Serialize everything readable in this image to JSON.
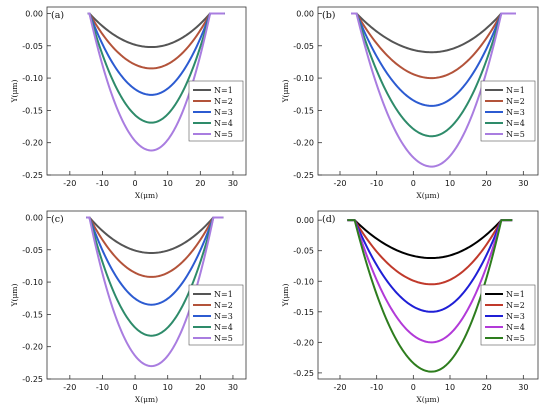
{
  "chart_data": [
    {
      "panel_label": "(a)",
      "type": "line",
      "xlabel": "X(μm)",
      "ylabel": "Y(μm)",
      "xlim": [
        -27,
        34
      ],
      "ylim": [
        -0.25,
        0.01
      ],
      "xticks": [
        -20,
        -10,
        0,
        10,
        20,
        30
      ],
      "yticks": [
        0.0,
        -0.05,
        -0.1,
        -0.15,
        -0.2,
        -0.25
      ],
      "ytick_labels": [
        "0.00",
        "-0.05",
        "-0.10",
        "-0.15",
        "-0.20",
        "-0.25"
      ],
      "legend_position": "center-right",
      "flat_extent": [
        -14.5,
        27.5
      ],
      "groove": {
        "left": -14,
        "right": 23,
        "center": 5
      },
      "series": [
        {
          "name": "N=1",
          "depth": 0.052,
          "color": "#555555"
        },
        {
          "name": "N=2",
          "depth": 0.085,
          "color": "#b3533a"
        },
        {
          "name": "N=3",
          "depth": 0.126,
          "color": "#2c5bd1"
        },
        {
          "name": "N=4",
          "depth": 0.169,
          "color": "#2e8b6a"
        },
        {
          "name": "N=5",
          "depth": 0.212,
          "color": "#a97de0"
        }
      ]
    },
    {
      "panel_label": "(b)",
      "type": "line",
      "xlabel": "X(μm)",
      "ylabel": "Y(μm)",
      "xlim": [
        -26,
        34
      ],
      "ylim": [
        -0.25,
        0.01
      ],
      "xticks": [
        -20,
        -10,
        0,
        10,
        20,
        30
      ],
      "yticks": [
        0.0,
        -0.05,
        -0.1,
        -0.15,
        -0.2,
        -0.25
      ],
      "ytick_labels": [
        "0.00",
        "-0.05",
        "-0.10",
        "-0.15",
        "-0.20",
        "-0.25"
      ],
      "legend_position": "center-right",
      "flat_extent": [
        -17,
        28
      ],
      "groove": {
        "left": -15.5,
        "right": 24,
        "center": 5
      },
      "series": [
        {
          "name": "N=1",
          "depth": 0.06,
          "color": "#555555"
        },
        {
          "name": "N=2",
          "depth": 0.1,
          "color": "#b3533a"
        },
        {
          "name": "N=3",
          "depth": 0.143,
          "color": "#2c5bd1"
        },
        {
          "name": "N=4",
          "depth": 0.19,
          "color": "#2e8b6a"
        },
        {
          "name": "N=5",
          "depth": 0.237,
          "color": "#a97de0"
        }
      ]
    },
    {
      "panel_label": "(c)",
      "type": "line",
      "xlabel": "X(μm)",
      "ylabel": "Y(μm)",
      "xlim": [
        -27,
        34
      ],
      "ylim": [
        -0.25,
        0.01
      ],
      "xticks": [
        -20,
        -10,
        0,
        10,
        20,
        30
      ],
      "yticks": [
        0.0,
        -0.05,
        -0.1,
        -0.15,
        -0.2,
        -0.25
      ],
      "ytick_labels": [
        "0.00",
        "-0.05",
        "-0.10",
        "-0.15",
        "-0.20",
        "-0.25"
      ],
      "legend_position": "center-right",
      "flat_extent": [
        -15,
        27
      ],
      "groove": {
        "left": -14,
        "right": 24,
        "center": 5
      },
      "series": [
        {
          "name": "N=1",
          "depth": 0.055,
          "color": "#555555"
        },
        {
          "name": "N=2",
          "depth": 0.092,
          "color": "#b3533a"
        },
        {
          "name": "N=3",
          "depth": 0.135,
          "color": "#2c5bd1"
        },
        {
          "name": "N=4",
          "depth": 0.183,
          "color": "#2e8b6a"
        },
        {
          "name": "N=5",
          "depth": 0.23,
          "color": "#a97de0"
        }
      ]
    },
    {
      "panel_label": "(d)",
      "type": "line",
      "xlabel": "X(μm)",
      "ylabel": "Y(μm)",
      "xlim": [
        -26,
        34
      ],
      "ylim": [
        -0.26,
        0.015
      ],
      "xticks": [
        -20,
        -10,
        0,
        10,
        20,
        30
      ],
      "yticks": [
        0.0,
        -0.05,
        -0.1,
        -0.15,
        -0.2,
        -0.25
      ],
      "ytick_labels": [
        "0.00",
        "-0.05",
        "-0.10",
        "-0.15",
        "-0.20",
        "-0.25"
      ],
      "legend_position": "center-right",
      "flat_extent": [
        -18,
        27
      ],
      "groove": {
        "left": -16,
        "right": 24,
        "center": 5
      },
      "series": [
        {
          "name": "N=1",
          "depth": 0.062,
          "color": "#000000"
        },
        {
          "name": "N=2",
          "depth": 0.105,
          "color": "#c0392b"
        },
        {
          "name": "N=3",
          "depth": 0.15,
          "color": "#1f1fd6"
        },
        {
          "name": "N=4",
          "depth": 0.2,
          "color": "#b23ad8"
        },
        {
          "name": "N=5",
          "depth": 0.248,
          "color": "#2e7d1e"
        }
      ]
    }
  ]
}
